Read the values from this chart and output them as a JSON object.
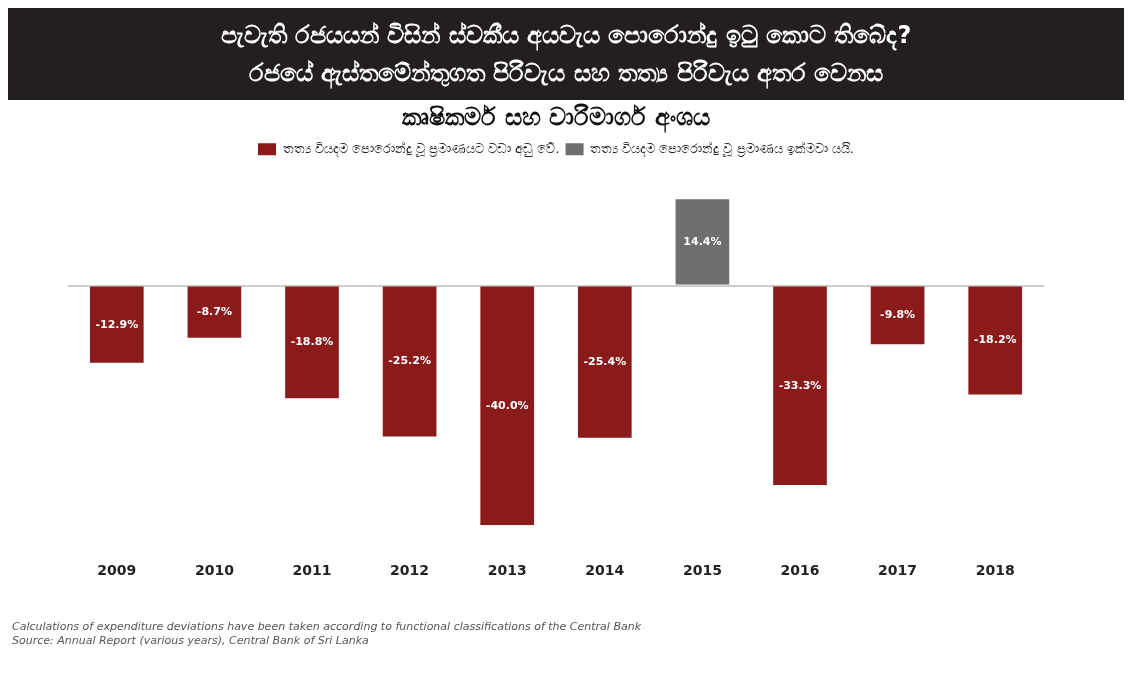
{
  "chart_data": {
    "type": "bar",
    "title": "පැවැති රජයයන් විසින් ස්වකීය අයවැය පොරොන්දු ඉටු කොට තිබේද?\nරජයේ ඇස්තමේන්තුගත පිරිවැය සහ තත්‍ය පිරිවැය අතර වෙනස",
    "subtitle": "කෘෂිකර්ම සහ වාරිමාර්ග අංශය",
    "categories": [
      "2009",
      "2010",
      "2011",
      "2012",
      "2013",
      "2014",
      "2015",
      "2016",
      "2017",
      "2018"
    ],
    "series": [
      {
        "name": "තත්‍ය වියදම පොරොන්දු වූ ප්‍රමාණයට වඩා අඩු වේ.",
        "color": "#8b1a1a",
        "values": [
          -12.9,
          -8.7,
          -18.8,
          -25.2,
          -40.0,
          -25.4,
          null,
          -33.3,
          -9.8,
          -18.2
        ],
        "value_labels": [
          "-12.9%",
          "-8.7%",
          "-18.8%",
          "-25.2%",
          "-40.0%",
          "-25.4%",
          null,
          "-33.3%",
          "-9.8%",
          "-18.2%"
        ]
      },
      {
        "name": "තත්‍ය වියදම පොරොන්දු වූ ප්‍රමාණය ඉක්මවා යයි.",
        "color": "#6d6e70",
        "values": [
          null,
          null,
          null,
          null,
          null,
          null,
          14.4,
          null,
          null,
          null
        ],
        "value_labels": [
          null,
          null,
          null,
          null,
          null,
          null,
          "14.4%",
          null,
          null,
          null
        ]
      }
    ],
    "stacked": true,
    "legend": "top",
    "data_labels": true,
    "tick_labels": "x",
    "annotations": [
      "Calculations of expenditure deviations have been taken according to functional classifications of the Central Bank",
      "Source: Annual Report (various years), Central Bank of Sri Lanka"
    ]
  }
}
